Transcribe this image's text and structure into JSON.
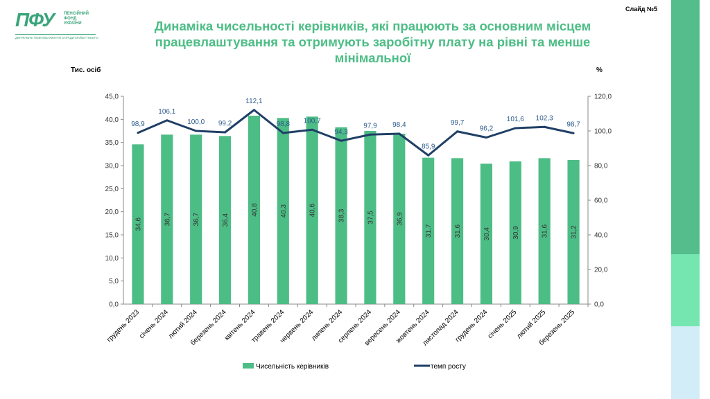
{
  "logo": {
    "mark": "ПФУ",
    "text_lines": [
      "ПЕНСІЙНИЙ",
      "ФОНД",
      "УКРАЇНИ"
    ],
    "subtitle": "ДЕРЖАВНЕ ПОВНОВАЖЕННЯ ЗАРАДИ МАЙБУТНЬОГО"
  },
  "slide_number": "Слайд №5",
  "title_lines": [
    "Динаміка чисельності керівників, які працюють за основним місцем",
    "працевлаштування та отримують заробітну плату на рівні та менше мінімальної"
  ],
  "colors": {
    "bar": "#4dbd86",
    "line": "#1f3f66",
    "title": "#4dbd86",
    "stripe_top": "#55bd8c",
    "stripe_mid": "#76e6b0",
    "stripe_bottom": "#d2ecf8"
  },
  "chart_data": {
    "type": "bar",
    "title": "Динаміка чисельності керівників, які працюють за основним місцем працевлаштування та отримують заробітну плату на рівні та менше мінімальної",
    "ylabel": "Тис. осіб",
    "y2label": "%",
    "ylim": [
      0,
      45
    ],
    "y2lim": [
      0,
      120
    ],
    "yticks": [
      "0,0",
      "5,0",
      "10,0",
      "15,0",
      "20,0",
      "25,0",
      "30,0",
      "35,0",
      "40,0",
      "45,0"
    ],
    "y2ticks": [
      "0,0",
      "20,0",
      "40,0",
      "60,0",
      "80,0",
      "100,0",
      "120,0"
    ],
    "grid": false,
    "legend_position": "bottom",
    "categories": [
      "грудень 2023",
      "січень 2024",
      "лютий 2024",
      "березень 2024",
      "квітень 2024",
      "травень 2024",
      "червень 2024",
      "липень 2024",
      "серпень 2024",
      "вересень 2024",
      "жовтень 2024",
      "листопад 2024",
      "грудень 2024",
      "січень 2025",
      "лютий 2025",
      "березень 2025"
    ],
    "series": [
      {
        "name": "Чисельність керівників",
        "type": "bar",
        "axis": "left",
        "values": [
          34.6,
          36.7,
          36.7,
          36.4,
          40.8,
          40.3,
          40.6,
          38.3,
          37.5,
          36.9,
          31.7,
          31.6,
          30.4,
          30.9,
          31.6,
          31.2
        ],
        "labels": [
          "34,6",
          "36,7",
          "36,7",
          "36,4",
          "40,8",
          "40,3",
          "40,6",
          "38,3",
          "37,5",
          "36,9",
          "31,7",
          "31,6",
          "30,4",
          "30,9",
          "31,6",
          "31,2"
        ]
      },
      {
        "name": "темп росту",
        "type": "line",
        "axis": "right",
        "values": [
          98.9,
          106.1,
          100.0,
          99.2,
          112.1,
          98.8,
          100.7,
          94.3,
          97.9,
          98.4,
          85.9,
          99.7,
          96.2,
          101.6,
          102.3,
          98.7
        ],
        "labels": [
          "98,9",
          "106,1",
          "100,0",
          "99,2",
          "112,1",
          "98,8",
          "100,7",
          "94,3",
          "97,9",
          "98,4",
          "85,9",
          "99,7",
          "96,2",
          "101,6",
          "102,3",
          "98,7"
        ]
      }
    ]
  }
}
